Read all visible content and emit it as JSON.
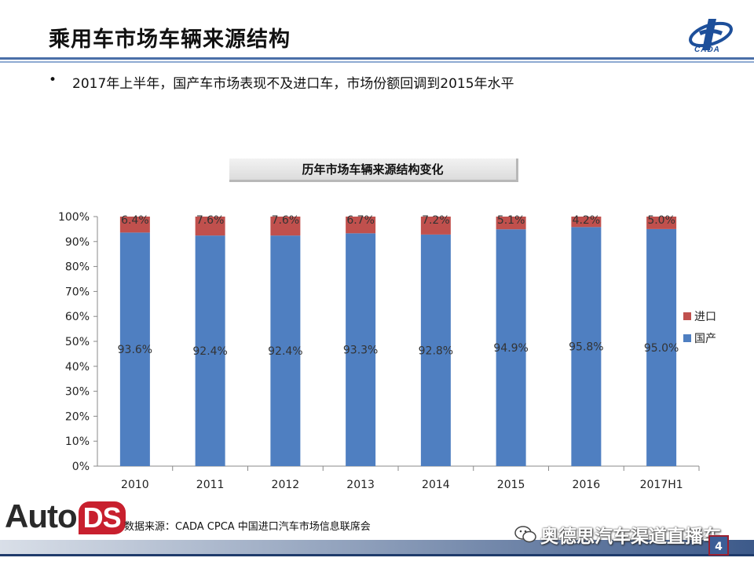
{
  "header": {
    "title": "乘用车市场车辆来源结构",
    "logo_text": "CADA"
  },
  "bullet": {
    "marker": "•",
    "text": "2017年上半年，国产车市场表现不及进口车，市场份额回调到2015年水平"
  },
  "chart_data": {
    "type": "bar",
    "stacked": true,
    "title": "历年市场车辆来源结构变化",
    "categories": [
      "2010",
      "2011",
      "2012",
      "2013",
      "2014",
      "2015",
      "2016",
      "2017H1"
    ],
    "series": [
      {
        "name": "国产",
        "color": "#4f7fc1",
        "values": [
          93.6,
          92.4,
          92.4,
          93.3,
          92.8,
          94.9,
          95.8,
          95.0
        ],
        "labels": [
          "93.6%",
          "92.4%",
          "92.4%",
          "93.3%",
          "92.8%",
          "94.9%",
          "95.8%",
          "95.0%"
        ]
      },
      {
        "name": "进口",
        "color": "#c0504d",
        "values": [
          6.4,
          7.6,
          7.6,
          6.7,
          7.2,
          5.1,
          4.2,
          5.0
        ],
        "labels": [
          "6.4%",
          "7.6%",
          "7.6%",
          "6.7%",
          "7.2%",
          "5.1%",
          "4.2%",
          "5.0%"
        ]
      }
    ],
    "yticks": [
      "0%",
      "10%",
      "20%",
      "30%",
      "40%",
      "50%",
      "60%",
      "70%",
      "80%",
      "90%",
      "100%"
    ],
    "ylim": [
      0,
      100
    ],
    "legend": [
      "进口",
      "国产"
    ],
    "legend_position": "right"
  },
  "footer": {
    "brand_auto": "Auto",
    "brand_ds": "DS",
    "source": "数据来源：CADA  CPCA  中国进口汽车市场信息联席会",
    "watermark": "奥德思汽车渠道直播车",
    "page_number": "4"
  }
}
